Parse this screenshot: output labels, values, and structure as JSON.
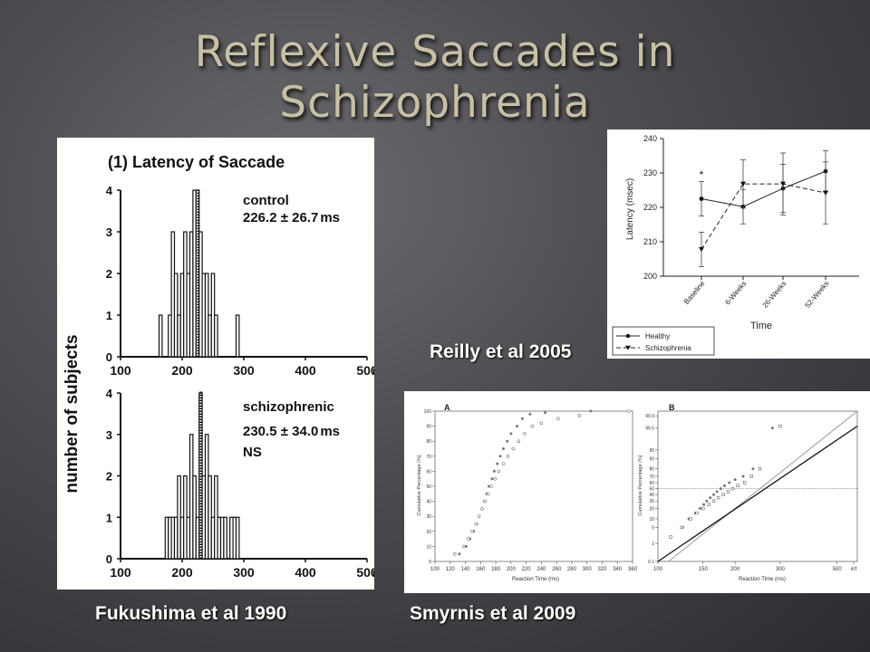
{
  "slide": {
    "title_line1": "Reflexive Saccades in",
    "title_line2": "Schizophrenia",
    "captions": {
      "fukushima": "Fukushima et al 1990",
      "reilly": "Reilly et al 2005",
      "smyrnis": "Smyrnis et al 2009"
    }
  },
  "chart_data": [
    {
      "type": "bar",
      "title": "(1) Latency of Saccade",
      "ylabel": "number of subjects",
      "x_unit": "ms",
      "x_ticks": [
        "100",
        "200",
        "300",
        "400",
        "500"
      ],
      "y_ticks": [
        "0",
        "1",
        "2",
        "3",
        "4"
      ],
      "xlim": [
        100,
        500
      ],
      "ylim": [
        0,
        4
      ],
      "panels": [
        {
          "group": "control",
          "stat": "226.2 ± 26.7",
          "note": "",
          "mean": 226.2,
          "bins": [
            {
              "x": 165,
              "count": 1
            },
            {
              "x": 180,
              "count": 1
            },
            {
              "x": 185,
              "count": 3
            },
            {
              "x": 190,
              "count": 2
            },
            {
              "x": 195,
              "count": 1
            },
            {
              "x": 200,
              "count": 2
            },
            {
              "x": 205,
              "count": 3
            },
            {
              "x": 210,
              "count": 2
            },
            {
              "x": 215,
              "count": 3
            },
            {
              "x": 220,
              "count": 4
            },
            {
              "x": 225,
              "count": 4
            },
            {
              "x": 230,
              "count": 3
            },
            {
              "x": 235,
              "count": 2
            },
            {
              "x": 240,
              "count": 2
            },
            {
              "x": 245,
              "count": 1
            },
            {
              "x": 250,
              "count": 2
            },
            {
              "x": 255,
              "count": 1
            },
            {
              "x": 290,
              "count": 1
            }
          ]
        },
        {
          "group": "schizophrenic",
          "stat": "230.5 ± 34.0",
          "note": "NS",
          "mean": 230.5,
          "bins": [
            {
              "x": 175,
              "count": 1
            },
            {
              "x": 180,
              "count": 1
            },
            {
              "x": 185,
              "count": 1
            },
            {
              "x": 190,
              "count": 1
            },
            {
              "x": 195,
              "count": 2
            },
            {
              "x": 200,
              "count": 1
            },
            {
              "x": 205,
              "count": 2
            },
            {
              "x": 210,
              "count": 1
            },
            {
              "x": 215,
              "count": 3
            },
            {
              "x": 220,
              "count": 2
            },
            {
              "x": 225,
              "count": 1
            },
            {
              "x": 230,
              "count": 4
            },
            {
              "x": 235,
              "count": 2
            },
            {
              "x": 240,
              "count": 3
            },
            {
              "x": 245,
              "count": 2
            },
            {
              "x": 250,
              "count": 1
            },
            {
              "x": 255,
              "count": 2
            },
            {
              "x": 260,
              "count": 1
            },
            {
              "x": 265,
              "count": 1
            },
            {
              "x": 270,
              "count": 1
            },
            {
              "x": 280,
              "count": 1
            },
            {
              "x": 285,
              "count": 1
            },
            {
              "x": 290,
              "count": 1
            }
          ]
        }
      ]
    },
    {
      "type": "line",
      "ylabel": "Latency (msec)",
      "xlabel": "Time",
      "categories": [
        "Baseline",
        "6-Weeks",
        "26-Weeks",
        "52-Weeks"
      ],
      "ylim": [
        200,
        240
      ],
      "y_ticks": [
        "200",
        "210",
        "220",
        "230",
        "240"
      ],
      "annotation": "*",
      "legend_position": "bottom-left",
      "series": [
        {
          "name": "Healthy",
          "marker": "circle",
          "dash": "solid",
          "values": [
            222.5,
            220.2,
            225.5,
            230.5
          ],
          "err": [
            5,
            5,
            7,
            6
          ]
        },
        {
          "name": "Schizophrenia",
          "marker": "triangle-down",
          "dash": "dashed",
          "values": [
            207.8,
            226.8,
            226.8,
            224.2
          ],
          "err": [
            5,
            7,
            9,
            9
          ]
        }
      ]
    },
    {
      "type": "scatter",
      "panel_label": "A",
      "xlabel": "Reaction Time (ms)",
      "ylabel": "Cumulative Percentage (%)",
      "x_ticks": [
        "100",
        "120",
        "140",
        "160",
        "180",
        "200",
        "220",
        "240",
        "260",
        "280",
        "300",
        "320",
        "340",
        "360"
      ],
      "y_ticks": [
        "0",
        "10",
        "20",
        "30",
        "40",
        "50",
        "60",
        "70",
        "80",
        "90",
        "100"
      ],
      "xlim": [
        100,
        360
      ],
      "ylim": [
        0,
        100
      ],
      "series": [
        {
          "name": "filled",
          "marker": "filled-circle",
          "x": [
            132,
            141,
            146,
            151,
            155,
            158,
            162,
            165,
            168,
            171,
            175,
            178,
            182,
            186,
            190,
            195,
            200,
            208,
            215,
            225,
            245,
            305
          ],
          "y": [
            5,
            10,
            15,
            20,
            25,
            30,
            35,
            40,
            45,
            50,
            55,
            60,
            65,
            70,
            75,
            80,
            85,
            90,
            95,
            98,
            99,
            100
          ]
        },
        {
          "name": "open",
          "marker": "open-circle",
          "x": [
            126,
            138,
            144,
            149,
            154,
            158,
            162,
            166,
            170,
            174,
            179,
            184,
            190,
            196,
            203,
            210,
            218,
            228,
            240,
            262,
            290,
            355
          ],
          "y": [
            5,
            10,
            15,
            20,
            25,
            30,
            35,
            40,
            45,
            50,
            55,
            60,
            65,
            70,
            75,
            80,
            85,
            90,
            92,
            95,
            97,
            100
          ]
        }
      ]
    },
    {
      "type": "scatter",
      "panel_label": "B",
      "xlabel": "Reaction Time (ms)",
      "ylabel": "Cumulative Percentage (%)",
      "x_ticks": [
        "100",
        "150",
        "200",
        "300",
        "500",
        "inf"
      ],
      "x_tick_values": [
        100,
        150,
        200,
        300,
        500
      ],
      "xlim": [
        100,
        600
      ],
      "y_ticks": [
        "0.1",
        "1",
        "5",
        "10",
        "20",
        "30",
        "40",
        "50",
        "60",
        "70",
        "80",
        "90",
        "95",
        "99.5",
        "99.9"
      ],
      "y_tick_values": [
        0.1,
        1,
        5,
        10,
        20,
        30,
        40,
        50,
        60,
        70,
        80,
        90,
        95,
        99.5,
        99.9
      ],
      "ylim": [
        0.1,
        99.95
      ],
      "reference_line": 50,
      "fit_lines": [
        {
          "name": "grey-fit",
          "p1": [
            110,
            0.1
          ],
          "p2": [
            600,
            99.95
          ]
        },
        {
          "name": "black-fit",
          "p1": [
            100,
            0.1
          ],
          "p2": [
            600,
            99.6
          ]
        }
      ],
      "series": [
        {
          "name": "filled",
          "marker": "filled-circle",
          "x": [
            125,
            132,
            140,
            146,
            151,
            155,
            160,
            165,
            170,
            176,
            182,
            190,
            200,
            215,
            235,
            280
          ],
          "y": [
            5,
            10,
            15,
            20,
            25,
            30,
            35,
            40,
            45,
            50,
            55,
            60,
            65,
            70,
            80,
            99.5
          ]
        },
        {
          "name": "open",
          "marker": "open-square",
          "x": [
            112,
            124,
            134,
            142,
            150,
            158,
            165,
            172,
            180,
            188,
            196,
            205,
            218,
            232,
            250,
            300
          ],
          "y": [
            2,
            5,
            10,
            15,
            20,
            25,
            30,
            35,
            40,
            45,
            50,
            55,
            60,
            70,
            80,
            99.6
          ]
        }
      ]
    }
  ]
}
